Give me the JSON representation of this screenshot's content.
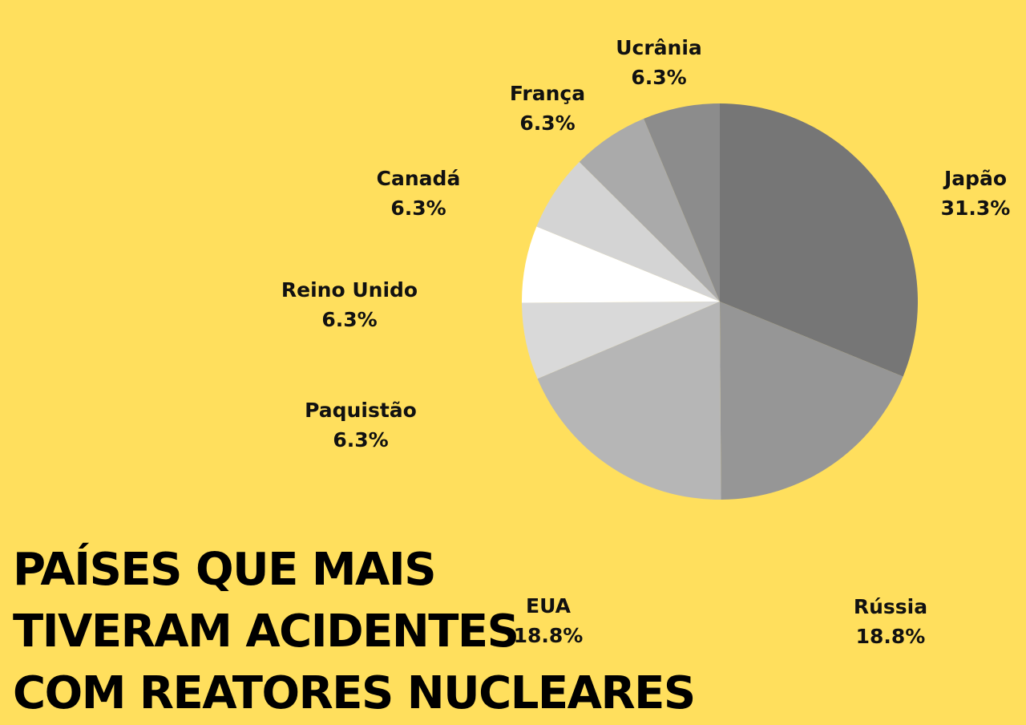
{
  "chart_data": {
    "type": "pie",
    "title_lines": [
      "PAÍSES QUE MAIS",
      "TIVERAM ACIDENTES",
      "COM REATORES NUCLEARES"
    ],
    "unit": "%",
    "slices": [
      {
        "label": "Japão",
        "value": 31.3,
        "value_label": "31.3%",
        "color": "#767676"
      },
      {
        "label": "Rússia",
        "value": 18.8,
        "value_label": "18.8%",
        "color": "#969696"
      },
      {
        "label": "EUA",
        "value": 18.8,
        "value_label": "18.8%",
        "color": "#B6B6B6"
      },
      {
        "label": "Paquistão",
        "value": 6.3,
        "value_label": "6.3%",
        "color": "#D9D9D9"
      },
      {
        "label": "Reino Unido",
        "value": 6.3,
        "value_label": "6.3%",
        "color": "#FFFFFF"
      },
      {
        "label": "Canadá",
        "value": 6.3,
        "value_label": "6.3%",
        "color": "#D4D4D4"
      },
      {
        "label": "França",
        "value": 6.3,
        "value_label": "6.3%",
        "color": "#AAAAAA"
      },
      {
        "label": "Ucrânia",
        "value": 6.3,
        "value_label": "6.3%",
        "color": "#8C8C8C"
      }
    ],
    "legend": "none",
    "background_color": "#FFDF5D"
  }
}
